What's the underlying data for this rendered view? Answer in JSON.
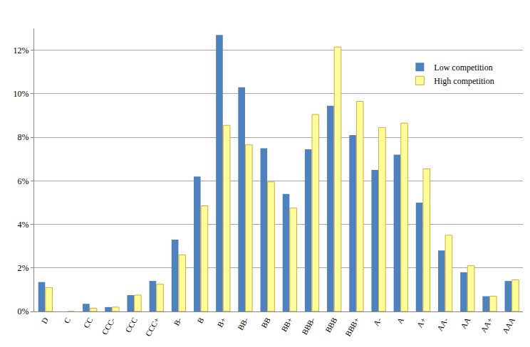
{
  "chart_data": {
    "type": "bar",
    "categories": [
      "D",
      "C",
      "CC",
      "CCC-",
      "CCC",
      "CCC+",
      "B-",
      "B",
      "B+",
      "BB-",
      "BB",
      "BB+",
      "BBB-",
      "BBB",
      "BBB+",
      "A-",
      "A",
      "A+",
      "AA-",
      "AA",
      "AA+",
      "AAA"
    ],
    "series": [
      {
        "name": "Low competition",
        "color": "#4f81bd",
        "values": [
          1.35,
          0,
          0.35,
          0.2,
          0.75,
          1.4,
          3.3,
          6.2,
          12.7,
          10.3,
          7.5,
          5.4,
          7.45,
          9.45,
          8.1,
          6.5,
          7.2,
          5.0,
          2.8,
          1.8,
          0.7,
          1.4
        ]
      },
      {
        "name": "High competition",
        "color": "#ffff99",
        "values": [
          1.1,
          0,
          0.15,
          0.2,
          0.75,
          1.25,
          2.6,
          4.85,
          8.55,
          7.65,
          5.95,
          4.75,
          9.05,
          12.15,
          9.65,
          8.45,
          8.65,
          6.55,
          3.5,
          2.1,
          0.7,
          1.45
        ]
      }
    ],
    "ylim": [
      0,
      13
    ],
    "yticks": [
      {
        "value": 0,
        "label": "0%"
      },
      {
        "value": 2,
        "label": "2%"
      },
      {
        "value": 4,
        "label": "4%"
      },
      {
        "value": 6,
        "label": "6%"
      },
      {
        "value": 8,
        "label": "8%"
      },
      {
        "value": 10,
        "label": "10%"
      },
      {
        "value": 12,
        "label": "12%"
      }
    ],
    "grid": true,
    "legend": "upper right"
  }
}
